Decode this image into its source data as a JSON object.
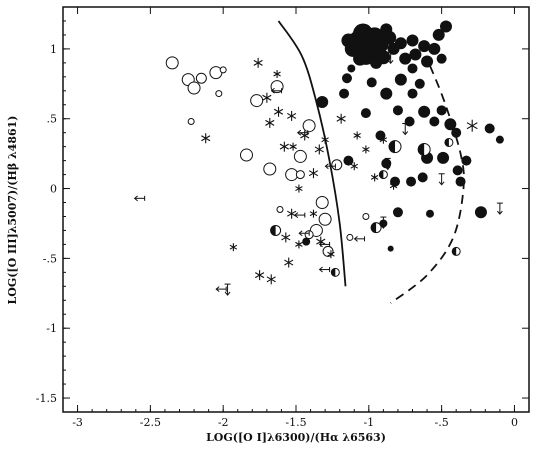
{
  "chart_data": {
    "type": "scatter",
    "title": "",
    "xlabel": "LOG([O I]λ6300)/(Hα λ6563)",
    "ylabel": "LOG([O III]λ5007)/(Hβ λ4861)",
    "xlim": [
      -3.1,
      0.1
    ],
    "ylim": [
      -1.6,
      1.3
    ],
    "x_ticks": [
      -3,
      -2.5,
      -2,
      -1.5,
      -1,
      -0.5,
      0
    ],
    "x_tick_labels": [
      "-3",
      "-2.5",
      "-2",
      "-1.5",
      "-1",
      "-.5",
      "0"
    ],
    "y_ticks": [
      -1.5,
      -1,
      -0.5,
      0,
      0.5,
      1
    ],
    "y_tick_labels": [
      "-1.5",
      "-1",
      "-.5",
      "0",
      ".5",
      "1"
    ],
    "grid": false,
    "colors": {
      "ink": "#111111",
      "background": "#ffffff"
    },
    "curves": [
      {
        "style": "solid",
        "points": [
          [
            -1.62,
            1.2
          ],
          [
            -1.46,
            0.95
          ],
          [
            -1.36,
            0.62
          ],
          [
            -1.27,
            0.2
          ],
          [
            -1.2,
            -0.25
          ],
          [
            -1.16,
            -0.7
          ]
        ]
      },
      {
        "style": "dashed",
        "points": [
          [
            -0.58,
            0.88
          ],
          [
            -0.48,
            0.62
          ],
          [
            -0.37,
            0.25
          ],
          [
            -0.35,
            0.0
          ],
          [
            -0.42,
            -0.35
          ],
          [
            -0.6,
            -0.62
          ],
          [
            -0.85,
            -0.82
          ]
        ]
      }
    ],
    "series": [
      {
        "marker": "filled-circle",
        "points": [
          [
            -1.08,
            1.07,
            8
          ],
          [
            -1.06,
            1.02,
            9
          ],
          [
            -1.04,
            1.11,
            10
          ],
          [
            -1.0,
            1.04,
            12
          ],
          [
            -0.98,
            1.0,
            10
          ],
          [
            -1.02,
            0.95,
            9
          ],
          [
            -0.96,
            1.09,
            9
          ],
          [
            -0.92,
            1.03,
            8
          ],
          [
            -1.11,
            1.0,
            8
          ],
          [
            -1.14,
            1.06,
            7
          ],
          [
            -0.9,
            0.94,
            7
          ],
          [
            -0.86,
            1.08,
            7
          ],
          [
            -0.83,
            1.0,
            6
          ],
          [
            -1.06,
            0.93,
            7
          ],
          [
            -0.95,
            0.9,
            6
          ],
          [
            -0.88,
            1.14,
            6
          ],
          [
            -0.78,
            1.04,
            6
          ],
          [
            -0.75,
            0.93,
            6
          ],
          [
            -0.7,
            1.06,
            6
          ],
          [
            -0.68,
            0.96,
            6
          ],
          [
            -0.62,
            1.02,
            6
          ],
          [
            -0.6,
            0.91,
            6
          ],
          [
            -0.55,
            1.0,
            6
          ],
          [
            -0.52,
            1.1,
            6
          ],
          [
            -0.47,
            1.16,
            6
          ],
          [
            -0.5,
            0.93,
            5
          ],
          [
            -0.7,
            0.86,
            5
          ],
          [
            -1.12,
            0.86,
            4
          ],
          [
            -1.15,
            0.79,
            5
          ],
          [
            -0.98,
            0.76,
            5
          ],
          [
            -0.88,
            0.68,
            6
          ],
          [
            -0.78,
            0.78,
            6
          ],
          [
            -0.7,
            0.68,
            5
          ],
          [
            -0.65,
            0.75,
            5
          ],
          [
            -0.8,
            0.56,
            5
          ],
          [
            -0.72,
            0.48,
            5
          ],
          [
            -0.62,
            0.55,
            6
          ],
          [
            -0.55,
            0.48,
            5
          ],
          [
            -0.5,
            0.56,
            5
          ],
          [
            -0.44,
            0.46,
            6
          ],
          [
            -0.4,
            0.4,
            5
          ],
          [
            -1.32,
            0.62,
            6
          ],
          [
            -1.17,
            0.68,
            5
          ],
          [
            -1.02,
            0.54,
            5
          ],
          [
            -0.92,
            0.38,
            5
          ],
          [
            -0.6,
            0.22,
            6
          ],
          [
            -0.49,
            0.22,
            6
          ],
          [
            -0.39,
            0.13,
            5
          ],
          [
            -0.63,
            0.08,
            5
          ],
          [
            -0.71,
            0.05,
            5
          ],
          [
            -0.88,
            0.18,
            5
          ],
          [
            -0.82,
            0.05,
            5
          ],
          [
            -0.8,
            -0.17,
            5
          ],
          [
            -0.9,
            -0.25,
            4
          ],
          [
            -0.85,
            -0.43,
            3
          ],
          [
            -0.58,
            -0.18,
            4
          ],
          [
            -0.33,
            0.2,
            5
          ],
          [
            -0.23,
            -0.17,
            6
          ],
          [
            -0.17,
            0.43,
            5
          ],
          [
            -0.1,
            0.35,
            4
          ],
          [
            -0.37,
            0.05,
            5
          ],
          [
            -1.43,
            -0.38,
            4
          ],
          [
            -1.14,
            0.2,
            5
          ]
        ]
      },
      {
        "marker": "open-circle",
        "points": [
          [
            -2.35,
            0.9,
            6
          ],
          [
            -2.24,
            0.78,
            6
          ],
          [
            -2.2,
            0.72,
            6
          ],
          [
            -2.15,
            0.79,
            5
          ],
          [
            -2.05,
            0.83,
            6
          ],
          [
            -2.0,
            0.85,
            3
          ],
          [
            -2.22,
            0.48,
            3
          ],
          [
            -2.03,
            0.68,
            3
          ],
          [
            -1.63,
            0.73,
            6
          ],
          [
            -1.77,
            0.63,
            6
          ],
          [
            -1.84,
            0.24,
            6
          ],
          [
            -1.68,
            0.14,
            6
          ],
          [
            -1.53,
            0.1,
            6
          ],
          [
            -1.47,
            0.23,
            6
          ],
          [
            -1.41,
            0.45,
            6
          ],
          [
            -1.22,
            0.17,
            5
          ],
          [
            -1.32,
            -0.1,
            6
          ],
          [
            -1.3,
            -0.22,
            6
          ],
          [
            -1.36,
            -0.3,
            6
          ],
          [
            -1.28,
            -0.45,
            5
          ],
          [
            -1.47,
            0.1,
            4
          ],
          [
            -1.61,
            -0.15,
            3
          ],
          [
            -1.13,
            -0.35,
            3
          ],
          [
            -1.02,
            -0.2,
            3
          ],
          [
            -1.41,
            -0.33,
            4
          ]
        ]
      },
      {
        "marker": "half-filled-circle",
        "points": [
          [
            -1.64,
            -0.3,
            5
          ],
          [
            -0.82,
            0.3,
            6
          ],
          [
            -0.62,
            0.28,
            6
          ],
          [
            -0.95,
            -0.28,
            5
          ],
          [
            -0.4,
            -0.45,
            4
          ],
          [
            -0.9,
            0.1,
            4
          ],
          [
            -1.23,
            -0.6,
            4
          ],
          [
            -0.45,
            0.33,
            4
          ]
        ]
      },
      {
        "marker": "asterisk",
        "points": [
          [
            -1.76,
            0.9,
            5
          ],
          [
            -1.7,
            0.65,
            5
          ],
          [
            -1.68,
            0.47,
            5
          ],
          [
            -1.62,
            0.55,
            5
          ],
          [
            -1.58,
            0.3,
            5
          ],
          [
            -1.53,
            0.52,
            5
          ],
          [
            -1.44,
            0.38,
            5
          ],
          [
            -1.38,
            0.11,
            5
          ],
          [
            -1.34,
            0.28,
            5
          ],
          [
            -1.3,
            0.35,
            4
          ],
          [
            -1.19,
            0.5,
            5
          ],
          [
            -1.08,
            0.38,
            4
          ],
          [
            -1.1,
            0.16,
            4
          ],
          [
            -1.02,
            0.28,
            4
          ],
          [
            -0.96,
            0.08,
            4
          ],
          [
            -0.9,
            0.35,
            4
          ],
          [
            -2.12,
            0.36,
            5
          ],
          [
            -1.93,
            -0.42,
            4
          ],
          [
            -1.75,
            -0.62,
            5
          ],
          [
            -1.67,
            -0.65,
            5
          ],
          [
            -1.55,
            -0.53,
            5
          ],
          [
            -1.57,
            -0.35,
            5
          ],
          [
            -1.53,
            -0.18,
            5
          ],
          [
            -1.48,
            0.0,
            4
          ],
          [
            -1.38,
            -0.18,
            4
          ],
          [
            -1.33,
            -0.38,
            5
          ],
          [
            -1.26,
            -0.47,
            4
          ],
          [
            -1.48,
            -0.4,
            4
          ],
          [
            -0.83,
            0.02,
            4
          ],
          [
            -0.29,
            0.45,
            6
          ],
          [
            -1.52,
            0.3,
            4
          ],
          [
            -1.63,
            0.82,
            4
          ]
        ]
      },
      {
        "marker": "upper-limit",
        "points": [
          [
            -1.97,
            -0.72
          ],
          [
            -0.85,
            0.94
          ],
          [
            -0.87,
            0.18
          ],
          [
            -0.75,
            0.43
          ],
          [
            -0.1,
            -0.14
          ],
          [
            -0.5,
            0.07
          ],
          [
            -0.9,
            -0.24
          ]
        ]
      },
      {
        "marker": "left-limit",
        "points": [
          [
            -2.56,
            -0.07
          ],
          [
            -1.62,
            0.7
          ],
          [
            -1.44,
            0.4
          ],
          [
            -1.25,
            0.16
          ],
          [
            -1.43,
            -0.32
          ],
          [
            -1.29,
            -0.4
          ],
          [
            -1.29,
            -0.58
          ],
          [
            -1.46,
            -0.19
          ],
          [
            -2.0,
            -0.72
          ],
          [
            -1.05,
            -0.36
          ]
        ]
      }
    ]
  }
}
